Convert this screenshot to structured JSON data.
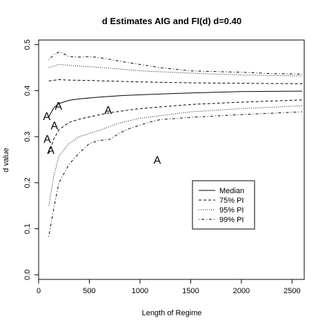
{
  "chart_data": {
    "type": "line",
    "title": "d Estimates AIG and FI(d) d=0.40",
    "xlabel": "Length of Regime",
    "ylabel": "d value",
    "xlim": [
      0,
      2620
    ],
    "ylim": [
      -0.01,
      0.51
    ],
    "x_ticks": [
      0,
      500,
      1000,
      1500,
      2000,
      2500
    ],
    "y_ticks": [
      0.0,
      0.1,
      0.2,
      0.3,
      0.4,
      0.5
    ],
    "x_tick_labels": [
      "0",
      "500",
      "1000",
      "1500",
      "2000",
      "2500"
    ],
    "y_tick_labels": [
      "0.0",
      "0.1",
      "0.2",
      "0.3",
      "0.4",
      "0.5"
    ],
    "grid": false,
    "legend": {
      "position": "right-center",
      "entries": [
        {
          "label": "Median",
          "dash": "solid"
        },
        {
          "label": "75% PI",
          "dash": "dashed"
        },
        {
          "label": "95% PI",
          "dash": "dotted"
        },
        {
          "label": "99% PI",
          "dash": "dotdash"
        }
      ]
    },
    "series": [
      {
        "name": "Median",
        "dash": "solid",
        "lines": [
          [
            [
              100,
              0.343
            ],
            [
              150,
              0.363
            ],
            [
              200,
              0.372
            ],
            [
              300,
              0.379
            ],
            [
              400,
              0.382
            ],
            [
              600,
              0.386
            ],
            [
              800,
              0.389
            ],
            [
              1000,
              0.391
            ],
            [
              1500,
              0.395
            ],
            [
              2000,
              0.398
            ],
            [
              2600,
              0.399
            ]
          ]
        ]
      },
      {
        "name": "75% PI",
        "dash": "dashed",
        "lines": [
          [
            [
              100,
              0.421
            ],
            [
              200,
              0.424
            ],
            [
              300,
              0.423
            ],
            [
              500,
              0.422
            ],
            [
              1000,
              0.419
            ],
            [
              1500,
              0.417
            ],
            [
              2000,
              0.416
            ],
            [
              2600,
              0.415
            ]
          ],
          [
            [
              100,
              0.263
            ],
            [
              150,
              0.295
            ],
            [
              200,
              0.315
            ],
            [
              300,
              0.331
            ],
            [
              400,
              0.338
            ],
            [
              500,
              0.343
            ],
            [
              700,
              0.352
            ],
            [
              1000,
              0.361
            ],
            [
              1500,
              0.37
            ],
            [
              2000,
              0.375
            ],
            [
              2600,
              0.38
            ]
          ]
        ]
      },
      {
        "name": "95% PI",
        "dash": "dotted",
        "lines": [
          [
            [
              100,
              0.45
            ],
            [
              200,
              0.457
            ],
            [
              300,
              0.455
            ],
            [
              500,
              0.452
            ],
            [
              800,
              0.447
            ],
            [
              1000,
              0.443
            ],
            [
              1500,
              0.438
            ],
            [
              2000,
              0.434
            ],
            [
              2600,
              0.432
            ]
          ],
          [
            [
              100,
              0.15
            ],
            [
              150,
              0.215
            ],
            [
              200,
              0.258
            ],
            [
              300,
              0.285
            ],
            [
              400,
              0.3
            ],
            [
              600,
              0.314
            ],
            [
              800,
              0.33
            ],
            [
              1000,
              0.34
            ],
            [
              1500,
              0.354
            ],
            [
              2000,
              0.361
            ],
            [
              2600,
              0.367
            ]
          ]
        ]
      },
      {
        "name": "99% PI",
        "dash": "dotdash",
        "lines": [
          [
            [
              100,
              0.467
            ],
            [
              150,
              0.478
            ],
            [
              200,
              0.484
            ],
            [
              250,
              0.48
            ],
            [
              300,
              0.474
            ],
            [
              400,
              0.473
            ],
            [
              500,
              0.474
            ],
            [
              600,
              0.472
            ],
            [
              800,
              0.464
            ],
            [
              1000,
              0.457
            ],
            [
              1200,
              0.45
            ],
            [
              1500,
              0.443
            ],
            [
              1800,
              0.441
            ],
            [
              2000,
              0.44
            ],
            [
              2300,
              0.437
            ],
            [
              2600,
              0.436
            ]
          ],
          [
            [
              100,
              0.083
            ],
            [
              150,
              0.145
            ],
            [
              200,
              0.2
            ],
            [
              300,
              0.24
            ],
            [
              400,
              0.265
            ],
            [
              500,
              0.285
            ],
            [
              600,
              0.292
            ],
            [
              700,
              0.294
            ],
            [
              800,
              0.308
            ],
            [
              900,
              0.318
            ],
            [
              1000,
              0.325
            ],
            [
              1100,
              0.332
            ],
            [
              1200,
              0.337
            ],
            [
              1500,
              0.342
            ],
            [
              2000,
              0.348
            ],
            [
              2600,
              0.354
            ]
          ]
        ]
      }
    ],
    "annotations": [
      {
        "text": "A",
        "x": 80,
        "y": 0.345
      },
      {
        "text": "A",
        "x": 195,
        "y": 0.368
      },
      {
        "text": "A",
        "x": 155,
        "y": 0.325
      },
      {
        "text": "A",
        "x": 85,
        "y": 0.296
      },
      {
        "text": "A",
        "x": 120,
        "y": 0.272
      },
      {
        "text": "A",
        "x": 685,
        "y": 0.359
      },
      {
        "text": "A",
        "x": 1170,
        "y": 0.25
      }
    ]
  }
}
